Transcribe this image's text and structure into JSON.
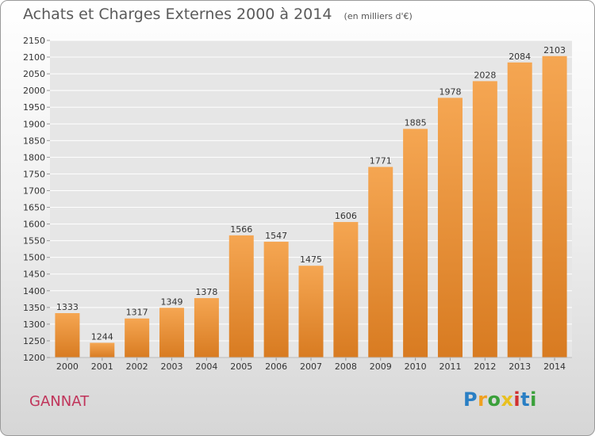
{
  "title": "Achats et Charges Externes 2000 à 2014",
  "unit_note": "(en milliers d'€)",
  "commune": "GANNAT",
  "brand": "Proxiti",
  "colors": {
    "bar_top": "#f5a652",
    "bar_bottom": "#d87b21",
    "grid": "#ffffff",
    "commune": "#c0345a"
  },
  "chart_data": {
    "type": "bar",
    "title": "Achats et Charges Externes 2000 à 2014",
    "categories": [
      "2000",
      "2001",
      "2002",
      "2003",
      "2004",
      "2005",
      "2006",
      "2007",
      "2008",
      "2009",
      "2010",
      "2011",
      "2012",
      "2013",
      "2014"
    ],
    "values": [
      1333,
      1244,
      1317,
      1349,
      1378,
      1566,
      1547,
      1475,
      1606,
      1771,
      1885,
      1978,
      2028,
      2084,
      2103
    ],
    "ylim": [
      1200,
      2150
    ],
    "yticks": [
      1200,
      1250,
      1300,
      1350,
      1400,
      1450,
      1500,
      1550,
      1600,
      1650,
      1700,
      1750,
      1800,
      1850,
      1900,
      1950,
      2000,
      2050,
      2100,
      2150
    ],
    "grid": true,
    "data_labels": true
  }
}
